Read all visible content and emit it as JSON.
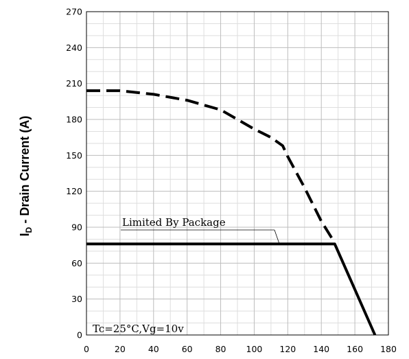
{
  "chart_data": {
    "type": "line",
    "title": "",
    "xlabel": "",
    "ylabel": {
      "main": "I",
      "subscript": "D",
      "rest": " - Drain Current (A)"
    },
    "xlim": [
      0,
      180
    ],
    "ylim": [
      0,
      270
    ],
    "x_ticks": [
      "0",
      "20",
      "40",
      "60",
      "80",
      "100",
      "120",
      "140",
      "160",
      "180"
    ],
    "y_ticks": [
      "0",
      "30",
      "60",
      "90",
      "120",
      "150",
      "180",
      "210",
      "240",
      "270"
    ],
    "grid": true,
    "series": [
      {
        "style": "dashed",
        "x": [
          0,
          20,
          40,
          60,
          80,
          100,
          110,
          117,
          120,
          130,
          140,
          148
        ],
        "y": [
          204,
          204,
          201,
          196,
          188,
          172,
          165,
          158,
          149,
          123,
          95,
          77
        ]
      },
      {
        "style": "solid",
        "x": [
          0,
          148,
          172
        ],
        "y": [
          76,
          76,
          0
        ]
      }
    ],
    "annotations": [
      {
        "text": "Limited By Package",
        "target_x": 115,
        "target_y": 76
      },
      {
        "text": "Tc=25°C,Vg=10v"
      }
    ]
  }
}
